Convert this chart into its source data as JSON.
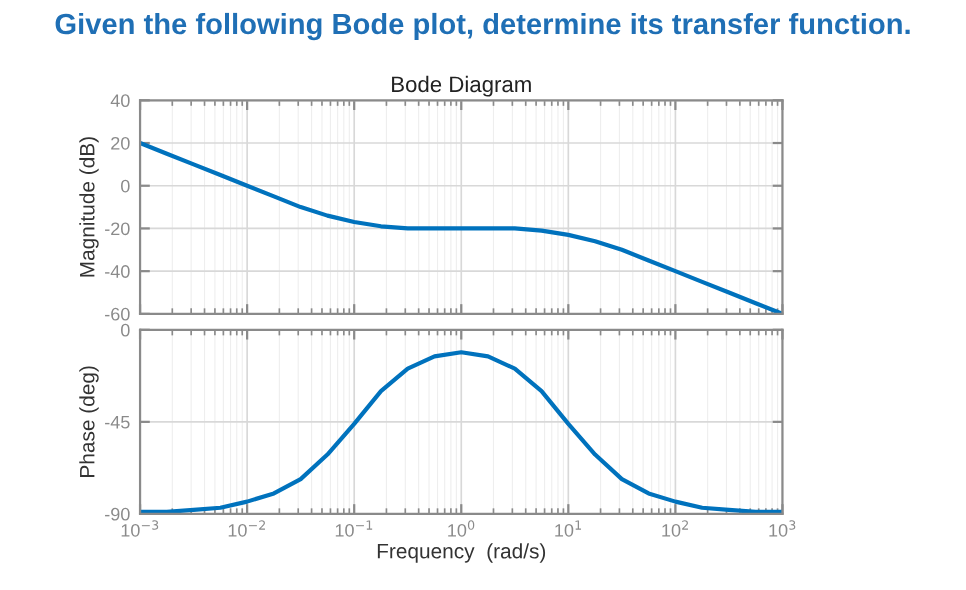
{
  "chart_data": [
    {
      "type": "line",
      "title": "Given the following Bode plot, determine its transfer function.",
      "subtitle": "Bode Diagram",
      "ylabel": "Magnitude (dB)",
      "x": [
        0.001,
        0.001778,
        0.003162,
        0.005623,
        0.01,
        0.01778,
        0.03162,
        0.05623,
        0.1,
        0.1778,
        0.3162,
        0.5623,
        1,
        1.778,
        3.162,
        5.623,
        10,
        17.78,
        31.62,
        56.23,
        100,
        177.8,
        316.2,
        562.3,
        1000
      ],
      "series": [
        {
          "color": "#0072bd",
          "values": [
            20,
            15,
            10,
            5,
            0,
            -5,
            -10,
            -14,
            -17,
            -19,
            -20,
            -20,
            -20,
            -20,
            -20,
            -21,
            -23,
            -26,
            -30,
            -35,
            -40,
            -45,
            -50,
            -55,
            -60
          ]
        }
      ],
      "log": "x",
      "xlim": [
        0.001,
        1000
      ],
      "xticks": [
        0.001,
        0.01,
        0.1,
        1,
        10,
        100,
        1000
      ],
      "ylim": [
        -60,
        40
      ],
      "yticks": [
        -60,
        -40,
        -20,
        0,
        20,
        40
      ],
      "grid": true,
      "tick_labels": "y",
      "marker": "none",
      "line_style": "solid"
    },
    {
      "type": "line",
      "xlabel": "Frequency  (rad/s)",
      "ylabel": "Phase (deg)",
      "x": [
        0.001,
        0.001778,
        0.003162,
        0.005623,
        0.01,
        0.01778,
        0.03162,
        0.05623,
        0.1,
        0.1778,
        0.3162,
        0.5623,
        1,
        1.778,
        3.162,
        5.623,
        10,
        17.78,
        31.62,
        56.23,
        100,
        177.8,
        316.2,
        562.3,
        1000
      ],
      "series": [
        {
          "color": "#0072bd",
          "values": [
            -89,
            -89,
            -88,
            -87,
            -84,
            -80,
            -73,
            -61,
            -46,
            -30,
            -19,
            -13,
            -11,
            -13,
            -19,
            -30,
            -46,
            -61,
            -73,
            -80,
            -84,
            -87,
            -88,
            -89,
            -89
          ]
        }
      ],
      "log": "x",
      "xlim": [
        0.001,
        1000
      ],
      "xticks": [
        {
          "value": 0.001,
          "label": "10$^{−3}$"
        },
        {
          "value": 0.01,
          "label": "10$^{−2}$"
        },
        {
          "value": 0.1,
          "label": "10$^{−1}$"
        },
        {
          "value": 1,
          "label": "10$^{0}$"
        },
        {
          "value": 10,
          "label": "10$^{1}$"
        },
        {
          "value": 100,
          "label": "10$^{2}$"
        },
        {
          "value": 1000,
          "label": "10$^{3}$"
        }
      ],
      "ylim": [
        -90,
        0
      ],
      "yticks": [
        -90,
        -45,
        0
      ],
      "grid": true,
      "marker": "none",
      "line_style": "solid"
    }
  ]
}
